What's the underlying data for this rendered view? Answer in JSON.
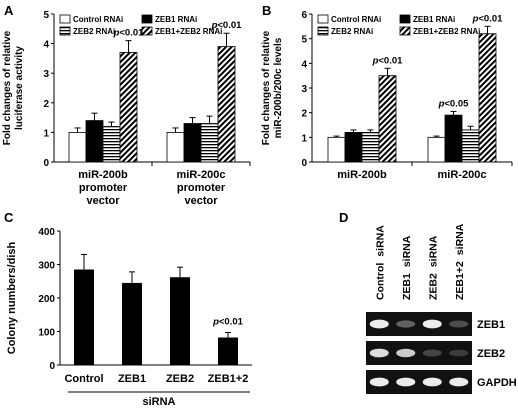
{
  "panels": {
    "A": {
      "letter": "A"
    },
    "B": {
      "letter": "B"
    },
    "C": {
      "letter": "C"
    },
    "D": {
      "letter": "D"
    }
  },
  "legend": [
    {
      "label": "Control RNAi",
      "pattern": "white"
    },
    {
      "label": "ZEB1 RNAi",
      "pattern": "black"
    },
    {
      "label": "ZEB2 RNAi",
      "pattern": "hstripe"
    },
    {
      "label": "ZEB1+ZEB2 RNAi",
      "pattern": "dstripe"
    }
  ],
  "chart_data": [
    {
      "panel": "A",
      "type": "bar",
      "ylabel_lines": [
        "Fold changes of relative",
        "luciferase activity"
      ],
      "ylim": [
        0,
        5
      ],
      "yticks": [
        "0",
        "1",
        "2",
        "3",
        "4",
        "5"
      ],
      "groups": [
        {
          "label_lines": [
            "miR-200b",
            "promoter",
            "vector"
          ],
          "values": [
            1.0,
            1.4,
            1.2,
            3.7
          ],
          "errors": [
            0.15,
            0.25,
            0.15,
            0.4
          ],
          "annotation": "p<0.01"
        },
        {
          "label_lines": [
            "miR-200c",
            "promoter",
            "vector"
          ],
          "values": [
            1.0,
            1.3,
            1.3,
            3.9
          ],
          "errors": [
            0.15,
            0.2,
            0.25,
            0.45
          ],
          "annotation": "p<0.01"
        }
      ]
    },
    {
      "panel": "B",
      "type": "bar",
      "ylabel_lines": [
        "Fold changes of relative",
        "miR-200b/200c levels"
      ],
      "ylim": [
        0,
        6
      ],
      "yticks": [
        "0",
        "1",
        "2",
        "3",
        "4",
        "5",
        "6"
      ],
      "groups": [
        {
          "label_lines": [
            "miR-200b"
          ],
          "values": [
            1.0,
            1.2,
            1.2,
            3.5
          ],
          "errors": [
            0.05,
            0.1,
            0.1,
            0.3
          ],
          "annotations": [
            "",
            "",
            "",
            "p<0.01"
          ]
        },
        {
          "label_lines": [
            "miR-200c"
          ],
          "values": [
            1.0,
            1.9,
            1.3,
            5.2
          ],
          "errors": [
            0.05,
            0.15,
            0.15,
            0.3
          ],
          "annotations": [
            "",
            "p<0.05",
            "",
            "p<0.01"
          ]
        }
      ]
    },
    {
      "panel": "C",
      "type": "bar",
      "ylabel": "Colony numbers/dish",
      "ylim": [
        0,
        400
      ],
      "yticks": [
        "0",
        "100",
        "200",
        "300",
        "400"
      ],
      "categories": [
        "Control",
        "ZEB1",
        "ZEB2",
        "ZEB1+2"
      ],
      "values": [
        285,
        245,
        262,
        82
      ],
      "errors": [
        45,
        33,
        30,
        15
      ],
      "annotations": [
        "",
        "",
        "",
        "p<0.01"
      ],
      "xgroup_label": "siRNA"
    }
  ],
  "gel": {
    "lanes": [
      "Control  siRNA",
      "ZEB1  siRNA",
      "ZEB2  siRNA",
      "ZEB1+2  siRNA"
    ],
    "rows": [
      {
        "label": "ZEB1",
        "intensities": [
          0.95,
          0.45,
          0.95,
          0.35
        ]
      },
      {
        "label": "ZEB2",
        "intensities": [
          0.9,
          0.85,
          0.3,
          0.25
        ]
      },
      {
        "label": "GAPDH",
        "intensities": [
          0.95,
          0.95,
          0.95,
          0.95
        ]
      }
    ]
  }
}
